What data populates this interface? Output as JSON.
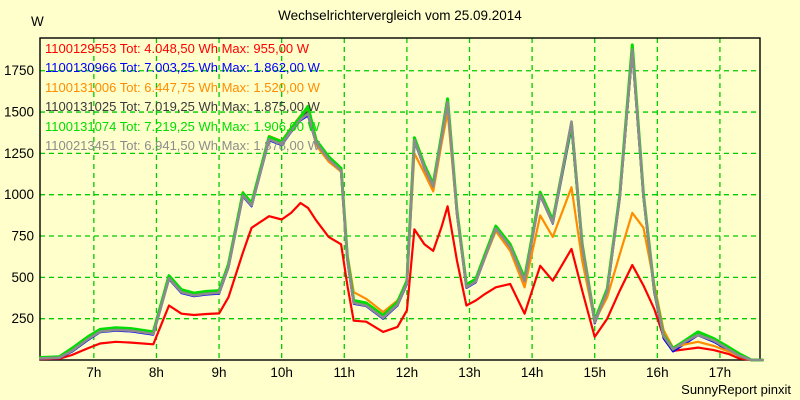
{
  "title": "Wechselrichtervergleich vom 25.09.2014",
  "y_axis_unit": "W",
  "credit": "SunnyReport pinxit",
  "colors": {
    "background": "#FFFFCC",
    "grid": "#00CC00",
    "axis": "#000000"
  },
  "chart_data": {
    "type": "line",
    "title": "Wechselrichtervergleich vom 25.09.2014",
    "xlabel": "",
    "ylabel": "W",
    "x_unit": "h",
    "grid": "dashed",
    "legend_position": "top-left",
    "x_range": [
      6.14,
      17.64
    ],
    "y_range": [
      0,
      1948
    ],
    "y_ticks": [
      250,
      500,
      750,
      1000,
      1250,
      1500,
      1750
    ],
    "x_ticks": {
      "values": [
        7,
        8,
        9,
        10,
        11,
        12,
        13,
        14,
        15,
        16,
        17
      ],
      "labels": [
        "7h",
        "8h",
        "9h",
        "10h",
        "11h",
        "12h",
        "13h",
        "14h",
        "15h",
        "16h",
        "17h"
      ]
    },
    "x": [
      6.15,
      6.45,
      6.65,
      6.9,
      7.1,
      7.35,
      7.6,
      7.95,
      8.2,
      8.4,
      8.6,
      8.8,
      9.0,
      9.15,
      9.38,
      9.52,
      9.8,
      10.0,
      10.15,
      10.3,
      10.42,
      10.55,
      10.75,
      10.95,
      11.05,
      11.15,
      11.35,
      11.62,
      11.85,
      12.0,
      12.12,
      12.28,
      12.42,
      12.55,
      12.65,
      12.8,
      12.95,
      13.1,
      13.25,
      13.42,
      13.65,
      13.88,
      14.13,
      14.33,
      14.63,
      14.8,
      15.0,
      15.2,
      15.4,
      15.6,
      15.78,
      15.95,
      16.1,
      16.25,
      16.45,
      16.65,
      16.9,
      17.15,
      17.3,
      17.5,
      17.68
    ],
    "series": [
      {
        "name": "1100129553",
        "tot": "4.048,50 Wh",
        "max": "955,00 W",
        "legend": "1100129553 Tot: 4.048,50 Wh Max: 955,00 W",
        "color": "#FF0000",
        "width": 2.2,
        "z": 0,
        "values": [
          5,
          8,
          30,
          70,
          100,
          110,
          105,
          95,
          330,
          280,
          272,
          278,
          282,
          380,
          650,
          800,
          870,
          850,
          890,
          950,
          920,
          845,
          745,
          700,
          450,
          238,
          232,
          170,
          200,
          300,
          790,
          700,
          660,
          800,
          930,
          600,
          330,
          360,
          400,
          440,
          460,
          280,
          570,
          480,
          672,
          420,
          140,
          250,
          420,
          575,
          450,
          310,
          140,
          55,
          65,
          75,
          60,
          35,
          10,
          0,
          0
        ]
      },
      {
        "name": "1100130966",
        "tot": "7.003,25 Wh",
        "max": "1.862,00 W",
        "legend": "1100130966 Tot: 7.003,25 Wh Max: 1.862,00 W",
        "color": "#0000FF",
        "width": 2.2,
        "z": 1,
        "values": [
          8,
          12,
          50,
          120,
          168,
          178,
          173,
          153,
          490,
          405,
          386,
          396,
          402,
          560,
          990,
          930,
          1330,
          1300,
          1380,
          1450,
          1480,
          1310,
          1210,
          1140,
          600,
          340,
          326,
          250,
          330,
          460,
          1325,
          1160,
          1045,
          1330,
          1550,
          880,
          436,
          470,
          620,
          790,
          680,
          476,
          995,
          825,
          1408,
          680,
          222,
          410,
          980,
          1862,
          980,
          410,
          131,
          52,
          101,
          150,
          111,
          56,
          25,
          0,
          0
        ]
      },
      {
        "name": "1100131006",
        "tot": "6.447,75 Wh",
        "max": "1.520,00 W",
        "legend": "1100131006 Tot: 6.447,75 Wh Max: 1.520,00 W",
        "color": "#FF8C00",
        "width": 2.2,
        "z": 3,
        "values": [
          10,
          15,
          60,
          130,
          175,
          188,
          182,
          162,
          500,
          418,
          398,
          408,
          412,
          572,
          1016,
          945,
          1355,
          1325,
          1405,
          1478,
          1520,
          1300,
          1200,
          1140,
          640,
          410,
          370,
          290,
          360,
          470,
          1250,
          1130,
          1020,
          1300,
          1500,
          880,
          445,
          480,
          620,
          780,
          660,
          440,
          875,
          745,
          1045,
          600,
          235,
          380,
          640,
          890,
          800,
          460,
          180,
          75,
          95,
          110,
          85,
          50,
          25,
          0,
          0
        ]
      },
      {
        "name": "1100131025",
        "tot": "7.019,25 Wh",
        "max": "1.875,00 W",
        "legend": "1100131025 Tot: 7.019,25 Wh Max: 1.875,00 W",
        "color": "#3A3A3A",
        "width": 2.4,
        "z": 2,
        "values": [
          10,
          15,
          60,
          130,
          176,
          186,
          181,
          161,
          500,
          415,
          396,
          406,
          411,
          570,
          1000,
          940,
          1340,
          1310,
          1390,
          1460,
          1505,
          1320,
          1220,
          1150,
          610,
          350,
          336,
          260,
          340,
          470,
          1335,
          1170,
          1055,
          1340,
          1565,
          890,
          446,
          480,
          630,
          800,
          690,
          486,
          1005,
          835,
          1418,
          690,
          232,
          420,
          990,
          1875,
          990,
          420,
          141,
          62,
          111,
          160,
          121,
          66,
          32,
          0,
          0
        ]
      },
      {
        "name": "1100131074",
        "tot": "7.219,25 Wh",
        "max": "1.906,00 W",
        "legend": "1100131074 Tot: 7.219,25 Wh Max: 1.906,00 W",
        "color": "#00DD00",
        "width": 3,
        "z": 4,
        "values": [
          15,
          20,
          70,
          140,
          185,
          195,
          190,
          170,
          510,
          425,
          405,
          415,
          420,
          580,
          1010,
          950,
          1350,
          1320,
          1400,
          1470,
          1535,
          1330,
          1230,
          1160,
          620,
          360,
          345,
          270,
          350,
          480,
          1345,
          1180,
          1065,
          1350,
          1580,
          900,
          455,
          490,
          640,
          810,
          700,
          495,
          1015,
          845,
          1430,
          700,
          240,
          430,
          1000,
          1906,
          1000,
          430,
          150,
          70,
          120,
          170,
          130,
          75,
          40,
          0,
          0
        ]
      },
      {
        "name": "1100213451",
        "tot": "6.941,50 Wh",
        "max": "1.878,00 W",
        "legend": "1100213451 Tot: 6.941,50 Wh Max: 1.878,00 W",
        "color": "#8C8C8C",
        "width": 2.6,
        "z": 5,
        "values": [
          10,
          14,
          55,
          125,
          172,
          182,
          178,
          158,
          495,
          410,
          391,
          401,
          407,
          565,
          995,
          935,
          1335,
          1305,
          1385,
          1455,
          1490,
          1315,
          1215,
          1145,
          605,
          345,
          330,
          255,
          335,
          465,
          1330,
          1165,
          1050,
          1335,
          1560,
          885,
          440,
          475,
          625,
          795,
          685,
          480,
          1000,
          830,
          1442,
          695,
          228,
          415,
          985,
          1878,
          995,
          425,
          145,
          65,
          112,
          152,
          118,
          62,
          28,
          0,
          0
        ]
      }
    ]
  }
}
